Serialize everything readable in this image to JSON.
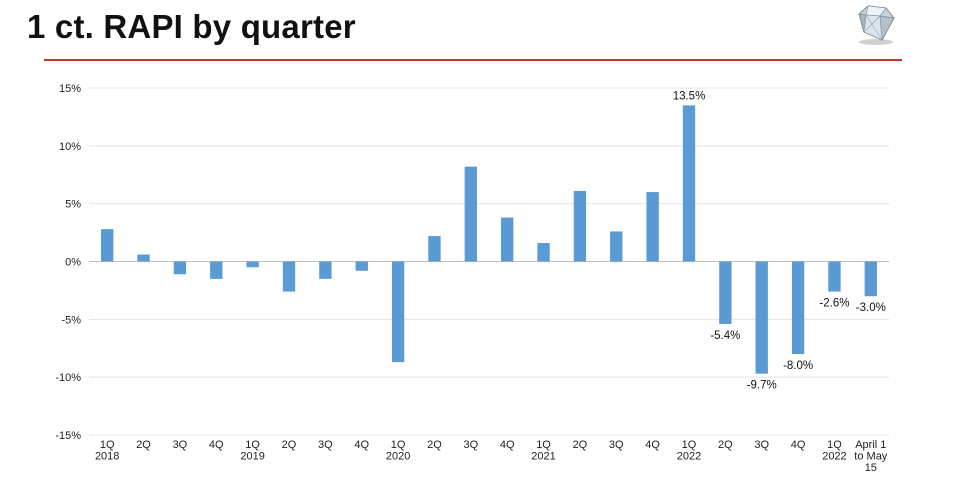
{
  "page": {
    "title": "1 ct. RAPI by quarter",
    "accent_color": "#c0392b",
    "logo_icon": "diamond-icon"
  },
  "chart_data": {
    "type": "bar",
    "title": "",
    "xlabel": "",
    "ylabel": "",
    "ylim": [
      -0.15,
      0.15
    ],
    "yticks": [
      0.15,
      0.1,
      0.05,
      0.0,
      -0.05,
      -0.1,
      -0.15
    ],
    "ytick_labels": [
      "15%",
      "10%",
      "5%",
      "0%",
      "-5%",
      "-10%",
      "-15%"
    ],
    "bar_color": "#5b9bd5",
    "gridlines": true,
    "categories": [
      [
        "1Q",
        "2018"
      ],
      [
        "2Q"
      ],
      [
        "3Q"
      ],
      [
        "4Q"
      ],
      [
        "1Q",
        "2019"
      ],
      [
        "2Q"
      ],
      [
        "3Q"
      ],
      [
        "4Q"
      ],
      [
        "1Q",
        "2020"
      ],
      [
        "2Q"
      ],
      [
        "3Q"
      ],
      [
        "4Q"
      ],
      [
        "1Q",
        "2021"
      ],
      [
        "2Q"
      ],
      [
        "3Q"
      ],
      [
        "4Q"
      ],
      [
        "1Q",
        "2022"
      ],
      [
        "2Q"
      ],
      [
        "3Q"
      ],
      [
        "4Q"
      ],
      [
        "1Q",
        "2022"
      ],
      [
        "April 1",
        "to May",
        "15"
      ]
    ],
    "values": [
      0.028,
      0.006,
      -0.011,
      -0.015,
      -0.005,
      -0.026,
      -0.015,
      -0.008,
      -0.087,
      0.022,
      0.082,
      0.038,
      0.016,
      0.061,
      0.026,
      0.06,
      0.135,
      -0.054,
      -0.097,
      -0.08,
      -0.026,
      -0.03
    ],
    "data_labels": [
      null,
      null,
      null,
      null,
      null,
      null,
      null,
      null,
      null,
      null,
      null,
      null,
      null,
      null,
      null,
      null,
      "13.5%",
      "-5.4%",
      "-9.7%",
      "-8.0%",
      "-2.6%",
      "-3.0%"
    ]
  }
}
